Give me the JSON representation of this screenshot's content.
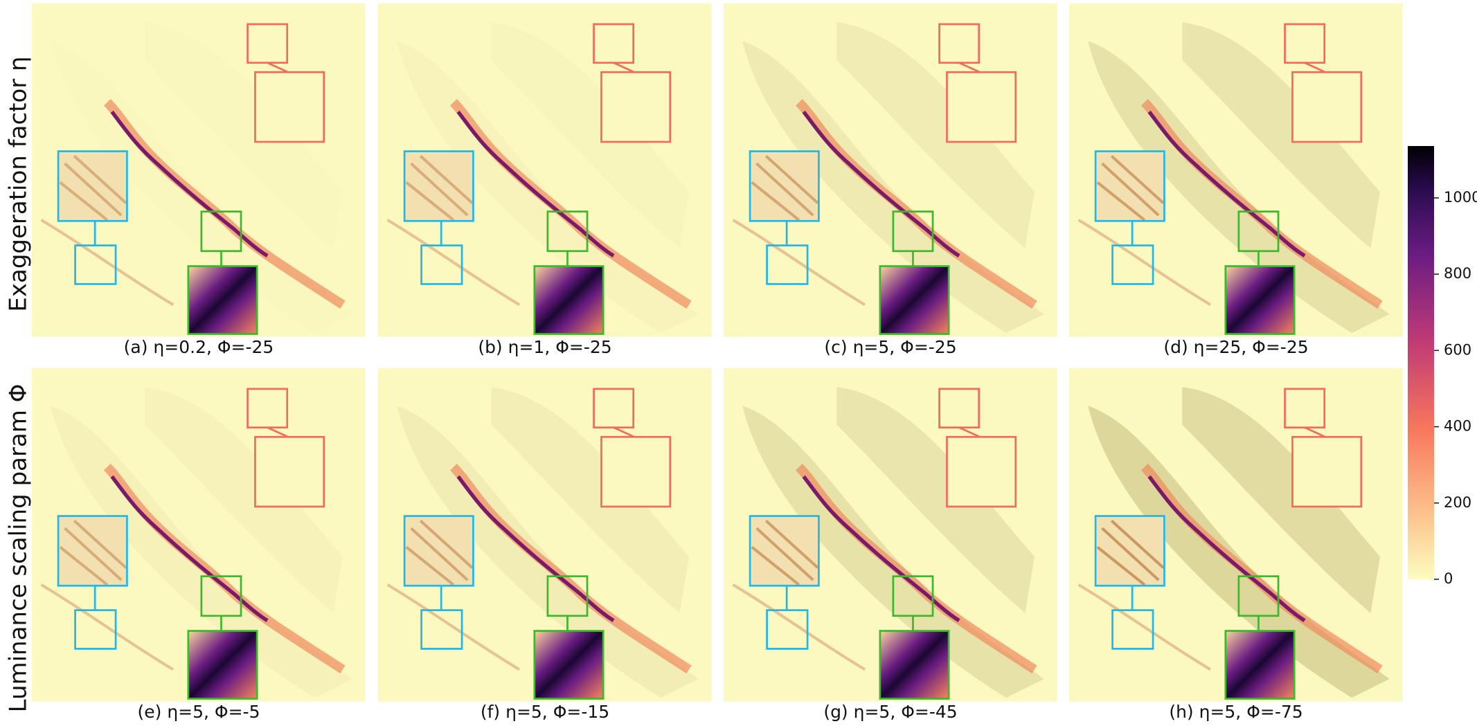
{
  "row_labels": [
    "Exaggeration factor η",
    "Luminance scaling param Φ"
  ],
  "panels": [
    {
      "caption": "(a) η=0.2, Φ=-25"
    },
    {
      "caption": "(b) η=1, Φ=-25"
    },
    {
      "caption": "(c) η=5, Φ=-25"
    },
    {
      "caption": "(d) η=25, Φ=-25"
    },
    {
      "caption": "(e) η=5, Φ=-5"
    },
    {
      "caption": "(f) η=5, Φ=-15"
    },
    {
      "caption": "(g) η=5, Φ=-45"
    },
    {
      "caption": "(h) η=5, Φ=-75"
    }
  ],
  "colorbar": {
    "lim": [
      0,
      1136
    ],
    "ticks": [
      0,
      200,
      400,
      600,
      800,
      1000
    ]
  }
}
